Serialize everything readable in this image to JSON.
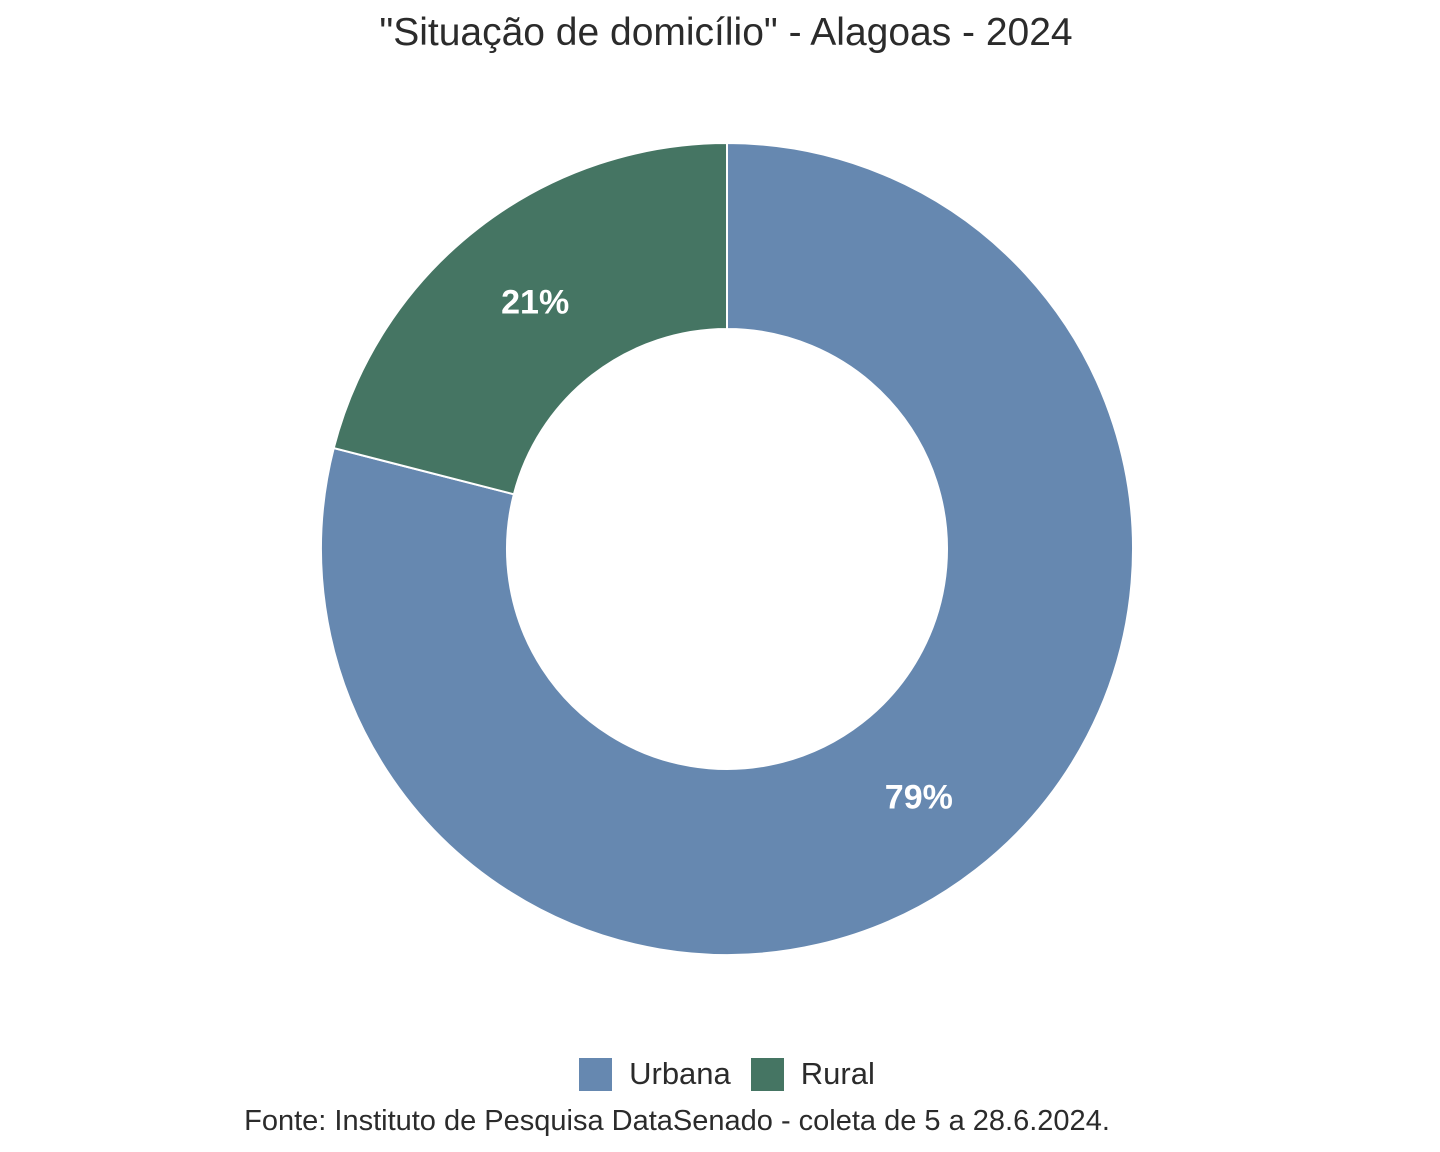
{
  "chart_data": {
    "type": "pie",
    "variant": "donut",
    "title": "\"Situação de domicílio\" - Alagoas - 2024",
    "categories": [
      "Urbana",
      "Rural"
    ],
    "values": [
      79,
      21
    ],
    "labels": [
      "79%",
      "21%"
    ],
    "colors": [
      "#6688b0",
      "#457563"
    ],
    "legend": {
      "position": "bottom",
      "entries": [
        "Urbana",
        "Rural"
      ]
    },
    "caption": "Fonte: Instituto de Pesquisa DataSenado - coleta de 5 a 28.6.2024."
  }
}
